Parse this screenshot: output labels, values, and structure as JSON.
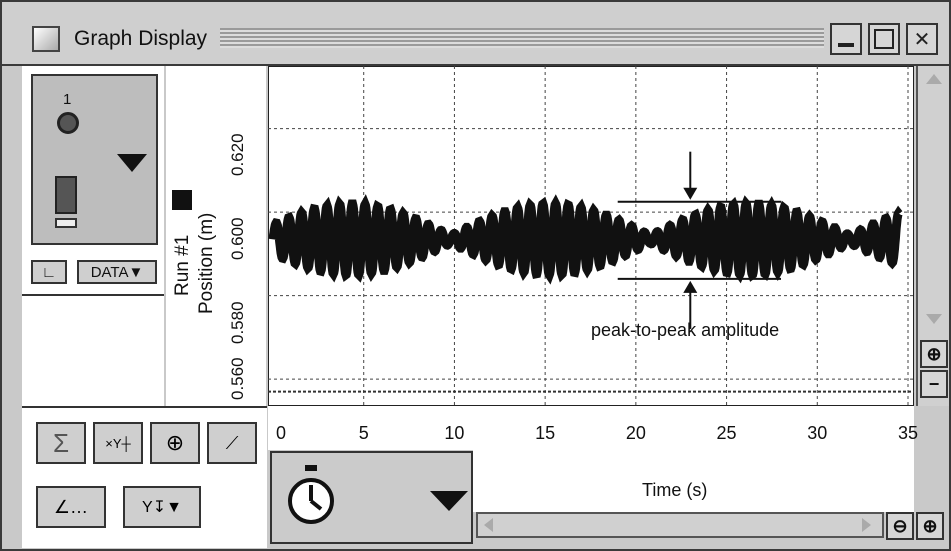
{
  "window": {
    "title": "Graph Display",
    "buttons": [
      "_",
      "□",
      "X"
    ]
  },
  "sensor": {
    "number": "1",
    "data_button": "DATA▼"
  },
  "graph": {
    "run_label": "Run #1",
    "ylabel": "Position (m)",
    "yticks": [
      "0.620",
      "0.600",
      "0.580",
      "0.560"
    ],
    "xticks": [
      "0",
      "5",
      "10",
      "15",
      "20",
      "25",
      "30",
      "35"
    ],
    "xlabel": "Time (s)",
    "annotation": "peak-to-peak amplitude"
  },
  "chart_data": {
    "type": "line",
    "xlabel": "Time (s)",
    "ylabel": "Position (m)",
    "xlim": [
      0,
      35
    ],
    "ylim": [
      0.555,
      0.635
    ],
    "xticks": [
      0,
      5,
      10,
      15,
      20,
      25,
      30,
      35
    ],
    "yticks": [
      0.56,
      0.58,
      0.6,
      0.62
    ],
    "grid": true,
    "series": [
      {
        "name": "Run #1",
        "x_start": 0,
        "x_end": 34.5,
        "center": 0.5935,
        "carrier_period_s": 0.7,
        "beat_period_s": 11.0,
        "max_half_amplitude": 0.0085,
        "min_half_amplitude": 0.001
      }
    ],
    "annotations": [
      {
        "text": "peak-to-peak amplitude",
        "upper_y": 0.6025,
        "lower_y": 0.584,
        "x": 23
      }
    ]
  },
  "icons": {
    "sum": "sigma-icon",
    "xy": "xy-coordinate-icon",
    "zoom_tool": "zoom-select-icon",
    "fit": "curve-fit-icon",
    "line_style": "line-graph-icon",
    "scale": "axis-scale-icon",
    "timer": "stopwatch-icon"
  }
}
